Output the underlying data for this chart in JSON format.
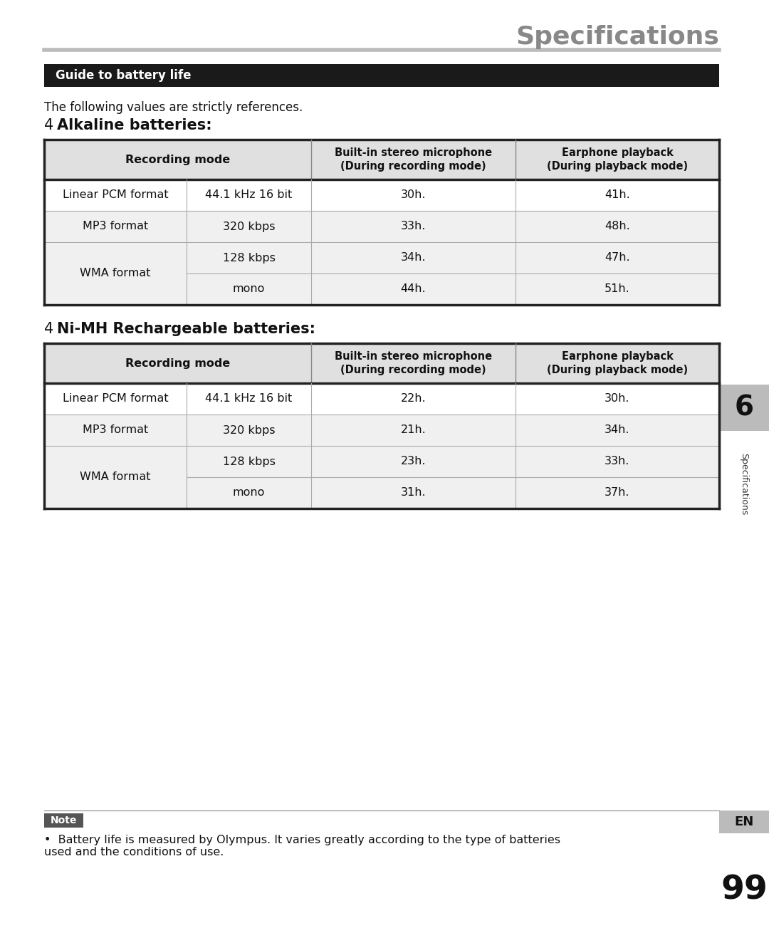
{
  "page_title": "Specifications",
  "section_header": "Guide to battery life",
  "intro_text": "The following values are strictly references.",
  "alkaline_title_num": "4",
  "alkaline_title": "Alkaline batteries:",
  "nimh_title_num": "4",
  "nimh_title": "Ni-MH Rechargeable batteries:",
  "col_headers": [
    "Recording mode",
    "Built-in stereo microphone\n(During recording mode)",
    "Earphone playback\n(During playback mode)"
  ],
  "alkaline_rows": [
    [
      "Linear PCM format",
      "44.1 kHz 16 bit",
      "30h.",
      "41h."
    ],
    [
      "MP3 format",
      "320 kbps",
      "33h.",
      "48h."
    ],
    [
      "WMA format",
      "128 kbps",
      "34h.",
      "47h."
    ],
    [
      "WMA format",
      "mono",
      "44h.",
      "51h."
    ]
  ],
  "nimh_rows": [
    [
      "Linear PCM format",
      "44.1 kHz 16 bit",
      "22h.",
      "30h."
    ],
    [
      "MP3 format",
      "320 kbps",
      "21h.",
      "34h."
    ],
    [
      "WMA format",
      "128 kbps",
      "23h.",
      "33h."
    ],
    [
      "WMA format",
      "mono",
      "31h.",
      "37h."
    ]
  ],
  "note_label": "Note",
  "note_text": "Battery life is measured by Olympus. It varies greatly according to the type of batteries\nused and the conditions of use.",
  "tab_label": "6",
  "tab_side_text": "Specifications",
  "page_num": "99",
  "en_label": "EN",
  "bg_color": "#ffffff",
  "header_bg": "#1a1a1a",
  "header_fg": "#ffffff",
  "table_header_bg": "#e0e0e0",
  "row_odd_bg": "#ffffff",
  "row_even_bg": "#f0f0f0",
  "note_bg": "#555555",
  "note_fg": "#ffffff",
  "side_tab_bg": "#bbbbbb",
  "gray_line_color": "#aaaaaa"
}
